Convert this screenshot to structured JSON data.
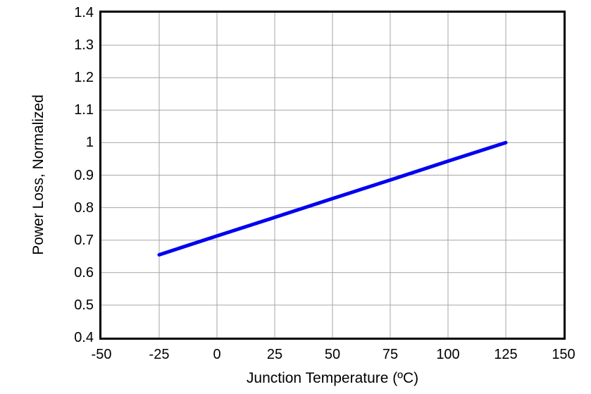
{
  "chart_data": {
    "type": "line",
    "title": "",
    "xlabel": "Junction Temperature (ºC)",
    "ylabel": "Power Loss, Normalized",
    "xlim": [
      -50,
      150
    ],
    "ylim": [
      0.4,
      1.4
    ],
    "x_ticks": [
      -50,
      -25,
      0,
      25,
      50,
      75,
      100,
      125,
      150
    ],
    "x_tick_labels": [
      "-50",
      "-25",
      "0",
      "25",
      "50",
      "75",
      "100",
      "125",
      "150"
    ],
    "y_ticks": [
      0.4,
      0.5,
      0.6,
      0.7,
      0.8,
      0.9,
      1.0,
      1.1,
      1.2,
      1.3,
      1.4
    ],
    "y_tick_labels": [
      "0.4",
      "0.5",
      "0.6",
      "0.7",
      "0.8",
      "0.9",
      "1",
      "1.1",
      "1.2",
      "1.3",
      "1.4"
    ],
    "grid": true,
    "legend": "none",
    "colors": {
      "grid": "#A6A6A6",
      "axis_frame": "#000000",
      "background": "#FFFFFF"
    },
    "series": [
      {
        "name": "power-loss",
        "color": "#0000F0",
        "x": [
          -25,
          0,
          25,
          50,
          75,
          100,
          125
        ],
        "y": [
          0.655,
          0.713,
          0.77,
          0.828,
          0.885,
          0.943,
          1.0
        ]
      }
    ]
  }
}
